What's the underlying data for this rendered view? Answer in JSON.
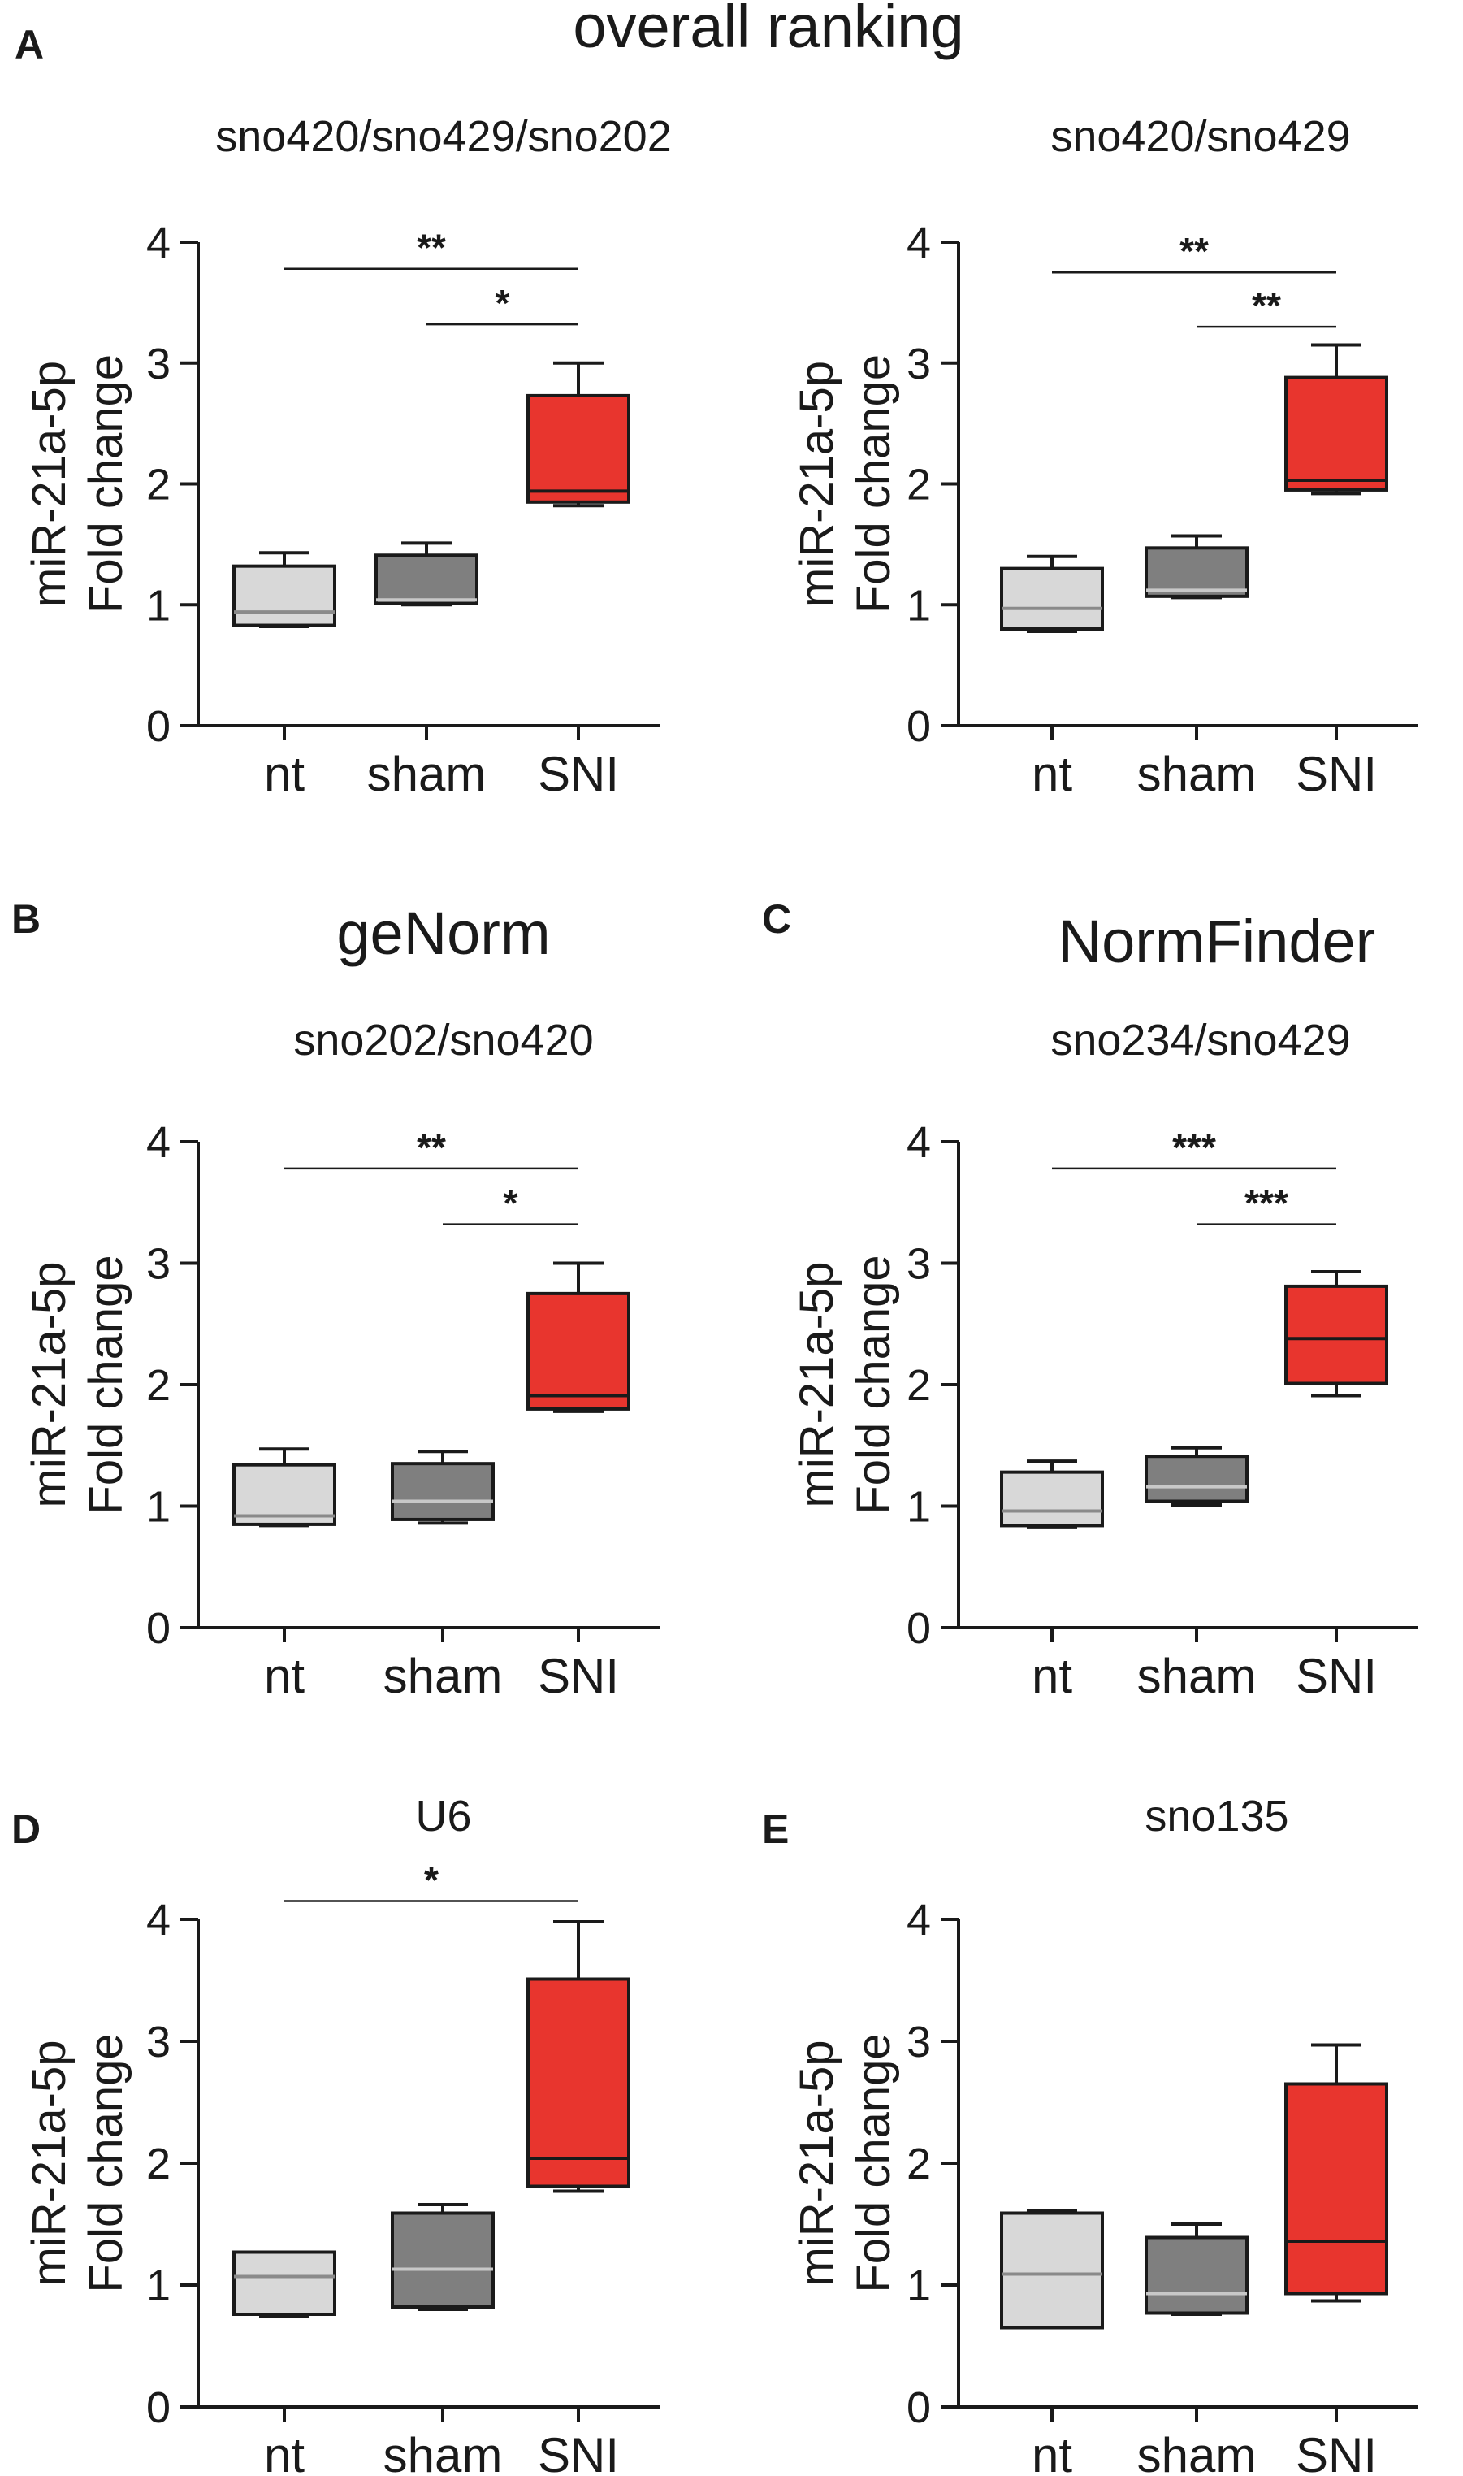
{
  "figure": {
    "title_overall": "overall ranking",
    "title_genorm": "geNorm",
    "title_normfinder": "NormFinder"
  },
  "colors": {
    "nt": "#d8d8d8",
    "sham": "#7f7f7f",
    "SNI": "#e8352e",
    "line": "#1a1a1a"
  },
  "chart_data": [
    {
      "id": "A1",
      "panel_letter": "A",
      "type": "box",
      "title": "sno420/sno429/sno202",
      "ylabel": [
        "miR-21a-5p",
        "Fold change"
      ],
      "categories": [
        "nt",
        "sham",
        "SNI"
      ],
      "ylim": [
        0,
        4
      ],
      "yticks": [
        "0",
        "1",
        "2",
        "3",
        "4"
      ],
      "boxes": [
        {
          "min": 0.82,
          "q1": 0.83,
          "median": 0.94,
          "q3": 1.32,
          "max": 1.43
        },
        {
          "min": 1.0,
          "q1": 1.01,
          "median": 1.04,
          "q3": 1.41,
          "max": 1.51
        },
        {
          "min": 1.82,
          "q1": 1.85,
          "median": 1.94,
          "q3": 2.73,
          "max": 3.0
        }
      ],
      "significance": [
        {
          "from": 0,
          "to": 2,
          "label": "**",
          "y": 3.78
        },
        {
          "from": 1,
          "to": 2,
          "label": "*",
          "y": 3.32
        }
      ]
    },
    {
      "id": "A2",
      "panel_letter": "",
      "type": "box",
      "title": "sno420/sno429",
      "ylabel": [
        "miR-21a-5p",
        "Fold change"
      ],
      "categories": [
        "nt",
        "sham",
        "SNI"
      ],
      "ylim": [
        0,
        4
      ],
      "yticks": [
        "0",
        "1",
        "2",
        "3",
        "4"
      ],
      "boxes": [
        {
          "min": 0.78,
          "q1": 0.8,
          "median": 0.97,
          "q3": 1.3,
          "max": 1.4
        },
        {
          "min": 1.06,
          "q1": 1.07,
          "median": 1.12,
          "q3": 1.47,
          "max": 1.57
        },
        {
          "min": 1.92,
          "q1": 1.95,
          "median": 2.03,
          "q3": 2.88,
          "max": 3.15
        }
      ],
      "significance": [
        {
          "from": 0,
          "to": 2,
          "label": "**",
          "y": 3.75
        },
        {
          "from": 1,
          "to": 2,
          "label": "**",
          "y": 3.3
        }
      ]
    },
    {
      "id": "B",
      "panel_letter": "B",
      "type": "box",
      "title": "sno202/sno420",
      "ylabel": [
        "miR-21a-5p",
        "Fold change"
      ],
      "categories": [
        "nt",
        "sham",
        "SNI"
      ],
      "ylim": [
        0,
        4
      ],
      "yticks": [
        "0",
        "1",
        "2",
        "3",
        "4"
      ],
      "boxes": [
        {
          "min": 0.84,
          "q1": 0.85,
          "median": 0.92,
          "q3": 1.34,
          "max": 1.47
        },
        {
          "min": 0.86,
          "q1": 0.89,
          "median": 1.04,
          "q3": 1.35,
          "max": 1.45
        },
        {
          "min": 1.78,
          "q1": 1.8,
          "median": 1.91,
          "q3": 2.75,
          "max": 3.0
        }
      ],
      "significance": [
        {
          "from": 0,
          "to": 2,
          "label": "**",
          "y": 3.78
        },
        {
          "from": 1,
          "to": 2,
          "label": "*",
          "y": 3.32
        }
      ]
    },
    {
      "id": "C",
      "panel_letter": "C",
      "type": "box",
      "title": "sno234/sno429",
      "ylabel": [
        "miR-21a-5p",
        "Fold change"
      ],
      "categories": [
        "nt",
        "sham",
        "SNI"
      ],
      "ylim": [
        0,
        4
      ],
      "yticks": [
        "0",
        "1",
        "2",
        "3",
        "4"
      ],
      "boxes": [
        {
          "min": 0.83,
          "q1": 0.84,
          "median": 0.96,
          "q3": 1.28,
          "max": 1.37
        },
        {
          "min": 1.01,
          "q1": 1.04,
          "median": 1.16,
          "q3": 1.41,
          "max": 1.48
        },
        {
          "min": 1.91,
          "q1": 2.01,
          "median": 2.38,
          "q3": 2.81,
          "max": 2.93
        }
      ],
      "significance": [
        {
          "from": 0,
          "to": 2,
          "label": "***",
          "y": 3.78
        },
        {
          "from": 1,
          "to": 2,
          "label": "***",
          "y": 3.32
        }
      ]
    },
    {
      "id": "D",
      "panel_letter": "D",
      "type": "box",
      "title": "U6",
      "ylabel": [
        "miR-21a-5p",
        "Fold change"
      ],
      "categories": [
        "nt",
        "sham",
        "SNI"
      ],
      "ylim": [
        0,
        4
      ],
      "yticks": [
        "0",
        "1",
        "2",
        "3",
        "4"
      ],
      "boxes": [
        {
          "min": 0.74,
          "q1": 0.76,
          "median": 1.07,
          "q3": 1.27,
          "max": 1.27
        },
        {
          "min": 0.8,
          "q1": 0.82,
          "median": 1.13,
          "q3": 1.59,
          "max": 1.66
        },
        {
          "min": 1.77,
          "q1": 1.81,
          "median": 2.04,
          "q3": 3.51,
          "max": 3.98
        }
      ],
      "significance": [
        {
          "from": 0,
          "to": 2,
          "label": "*",
          "y": 4.15
        }
      ]
    },
    {
      "id": "E",
      "panel_letter": "E",
      "type": "box",
      "title": "sno135",
      "ylabel": [
        "miR-21a-5p",
        "Fold change"
      ],
      "categories": [
        "nt",
        "sham",
        "SNI"
      ],
      "ylim": [
        0,
        4
      ],
      "yticks": [
        "0",
        "1",
        "2",
        "3",
        "4"
      ],
      "boxes": [
        {
          "min": 0.65,
          "q1": 0.65,
          "median": 1.09,
          "q3": 1.59,
          "max": 1.61
        },
        {
          "min": 0.76,
          "q1": 0.77,
          "median": 0.93,
          "q3": 1.39,
          "max": 1.5
        },
        {
          "min": 0.87,
          "q1": 0.93,
          "median": 1.36,
          "q3": 2.65,
          "max": 2.97
        }
      ],
      "significance": []
    }
  ]
}
